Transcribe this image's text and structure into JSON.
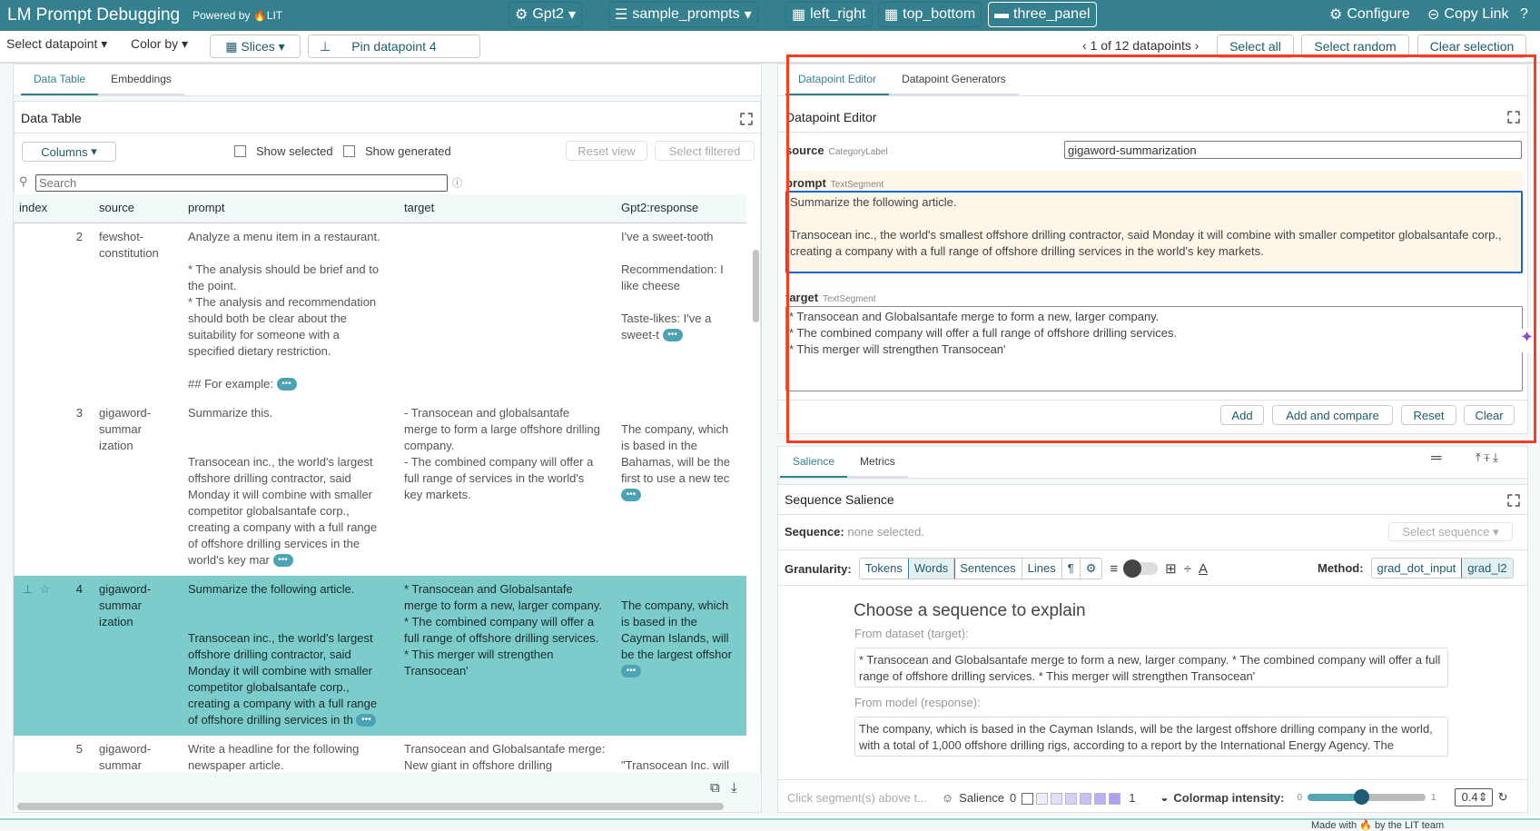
{
  "header": {
    "title": "LM Prompt Debugging",
    "powered_by": "Powered by",
    "lit": "LIT",
    "model": "Gpt2",
    "dataset": "sample_prompts",
    "layouts": [
      "left_right",
      "top_bottom",
      "three_panel"
    ],
    "configure": "Configure",
    "copy_link": "Copy Link"
  },
  "toolbar": {
    "select_datapoint": "Select datapoint",
    "color_by": "Color by",
    "slices": "Slices",
    "pin": "Pin datapoint 4",
    "counter": "1 of 12 datapoints",
    "select_all": "Select all",
    "select_random": "Select random",
    "clear_selection": "Clear selection"
  },
  "left": {
    "tabs": [
      "Data Table",
      "Embeddings"
    ],
    "title": "Data Table",
    "columns_btn": "Columns",
    "show_selected": "Show selected",
    "show_generated": "Show generated",
    "reset_view": "Reset view",
    "select_filtered": "Select filtered",
    "search_placeholder": "Search",
    "headers": [
      "index",
      "source",
      "prompt",
      "target",
      "Gpt2:response"
    ],
    "rows": [
      {
        "index": "2",
        "source": "fewshot-\nconstitution",
        "prompt": "Analyze a menu item in a restaurant.\n\n* The analysis should be brief and to\nthe point.\n* The analysis and recommendation\nshould both be clear about the\nsuitability for someone with a\nspecified dietary restriction.\n\n## For example: ",
        "target": "",
        "response": "I've a sweet-tooth\n\nRecommendation: I\nlike cheese\n\nTaste-likes: I've a\nsweet-t "
      },
      {
        "index": "3",
        "source": "gigaword-\nsummar\nization",
        "prompt": "Summarize this.\n\n\nTransocean inc., the world's largest\noffshore drilling contractor, said\nMonday it will combine with smaller\ncompetitor globalsantafe corp.,\ncreating a company with a full range\nof offshore drilling services in the\nworld's key mar ",
        "target": "- Transocean and globalsantafe\nmerge to form a large offshore drilling\ncompany.\n- The combined company will offer a\nfull range of services in the world's\nkey markets.",
        "response": "\nThe company, which\nis based in the\nBahamas, will be the\nfirst to use a new tec\n"
      },
      {
        "index": "4",
        "source": "gigaword-\nsummar\nization",
        "prompt": "Summarize the following article.\n\n\nTransocean inc., the world's largest\noffshore drilling contractor, said\nMonday it will combine with smaller\ncompetitor globalsantafe corp.,\ncreating a company with a full range\nof offshore drilling services in th ",
        "target": "* Transocean and Globalsantafe\nmerge to form a new, larger company.\n* The combined company will offer a\nfull range of offshore drilling services.\n* This merger will strengthen\nTransocean'",
        "response": "\nThe company, which\nis based in the\nCayman Islands, will\nbe the largest offshor\n"
      },
      {
        "index": "5",
        "source": "gigaword-\nsummar\nization",
        "prompt": "Write a headline for the following\nnewspaper article.\n\n\nTransocean inc., the world's largest\noffshore drilling contractor, said",
        "target": "Transocean and Globalsantafe merge:\nNew giant in offshore drilling",
        "response": "\n\"Transocean Inc. will\ncombine with\nGlobalsantafe Corp.\nto create a company"
      }
    ]
  },
  "editor": {
    "tabs": [
      "Datapoint Editor",
      "Datapoint Generators"
    ],
    "title": "Datapoint Editor",
    "source_label": "source",
    "source_type": "CategoryLabel",
    "source_value": "gigaword-summarization",
    "prompt_label": "prompt",
    "prompt_type": "TextSegment",
    "prompt_value": "Summarize the following article.\n\nTransocean inc., the world's smallest offshore drilling contractor, said Monday it will combine with smaller competitor globalsantafe corp., creating a company with a full range of offshore drilling services in the world's key markets.",
    "target_label": "target",
    "target_type": "TextSegment",
    "target_value": "* Transocean and Globalsantafe merge to form a new, larger company.\n* The combined company will offer a full range of offshore drilling services.\n* This merger will strengthen Transocean'",
    "add": "Add",
    "add_compare": "Add and compare",
    "reset": "Reset",
    "clear": "Clear"
  },
  "salience": {
    "tabs": [
      "Salience",
      "Metrics"
    ],
    "title": "Sequence Salience",
    "sequence_label": "Sequence:",
    "sequence_value": "none selected.",
    "select_sequence": "Select sequence",
    "granularity_label": "Granularity:",
    "granularity": [
      "Tokens",
      "Words",
      "Sentences",
      "Lines",
      "¶",
      "⚙"
    ],
    "granularity_selected": "Words",
    "method_label": "Method:",
    "methods": [
      "grad_dot_input",
      "grad_l2"
    ],
    "method_selected": "grad_l2",
    "choose_title": "Choose a sequence to explain",
    "from_dataset": "From dataset (target):",
    "dataset_seq": "* Transocean and Globalsantafe merge to form a new, larger company. * The combined company will offer a full range of offshore drilling services. * This merger will strengthen Transocean'",
    "from_model": "From model (response):",
    "model_seq": "The company, which is based in the Cayman Islands, will be the largest offshore drilling company in the world, with a total of 1,000 offshore drilling rigs, according to a report by the International Energy Agency. The",
    "hint": "Click segment(s) above t...",
    "legend_label": "Salience",
    "legend_min": "0",
    "legend_max": "1",
    "colormap_label": "Colormap intensity:",
    "slider_min": "0",
    "slider_max": "1",
    "intensity": "0.4",
    "intensity_fraction": 0.4
  },
  "footer": {
    "text": "Made with 🔥 by the LIT team"
  },
  "colors": {
    "header": "#35808f",
    "accent": "#35808f",
    "selected_row": "#7ccccc",
    "annotation": "#ff3b1f"
  }
}
